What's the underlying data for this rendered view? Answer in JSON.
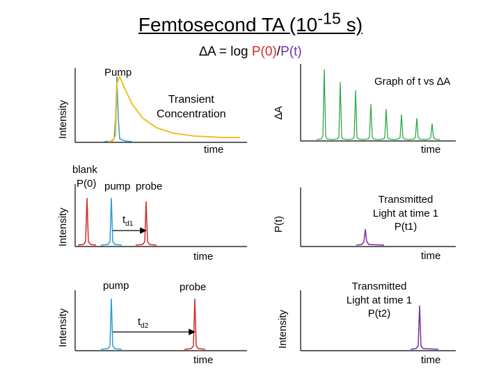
{
  "header": {
    "title_main": "Femtosecond TA (10",
    "title_sup": "-15",
    "title_end": " s)",
    "eq_delta": "∆A = log ",
    "eq_p0": "P(0)",
    "eq_slash": "/",
    "eq_pt": "P(t)"
  },
  "panel1": {
    "pump_label": "Pump",
    "transient_line1": "Transient",
    "transient_line2": "Concentration",
    "y_label": "Intensity",
    "x_label": "time"
  },
  "panel2": {
    "title": "Graph of t vs ∆A",
    "y_label": "∆A",
    "x_label": "time"
  },
  "panel3": {
    "blank_label": "blank",
    "p0_label": "P(0)",
    "pump_label": "pump",
    "probe_label": "probe",
    "td_label": "t",
    "td_sub": "d1",
    "y_label": "Intensity",
    "x_label": "time"
  },
  "panel4": {
    "line1": "Transmitted",
    "line2": "Light at time 1",
    "line3": "P(t1)",
    "y_label": "P(t)",
    "x_label": "time"
  },
  "panel5": {
    "pump_label": "pump",
    "probe_label": "probe",
    "td_label": "t",
    "td_sub": "d2",
    "y_label": "Intensity",
    "x_label": "time"
  },
  "panel6": {
    "line1": "Transmitted",
    "line2": "Light at time 1",
    "line3": "P(t2)",
    "y_label": "Intensity",
    "x_label": "time"
  },
  "colors": {
    "pump": "#2e9ad6",
    "probe": "#d12a2a",
    "transient": "#f0c020",
    "delta_a": "#2ea84a",
    "transmitted": "#7a2e9a",
    "red_text": "#d12a2a",
    "purple_text": "#7030a0"
  }
}
